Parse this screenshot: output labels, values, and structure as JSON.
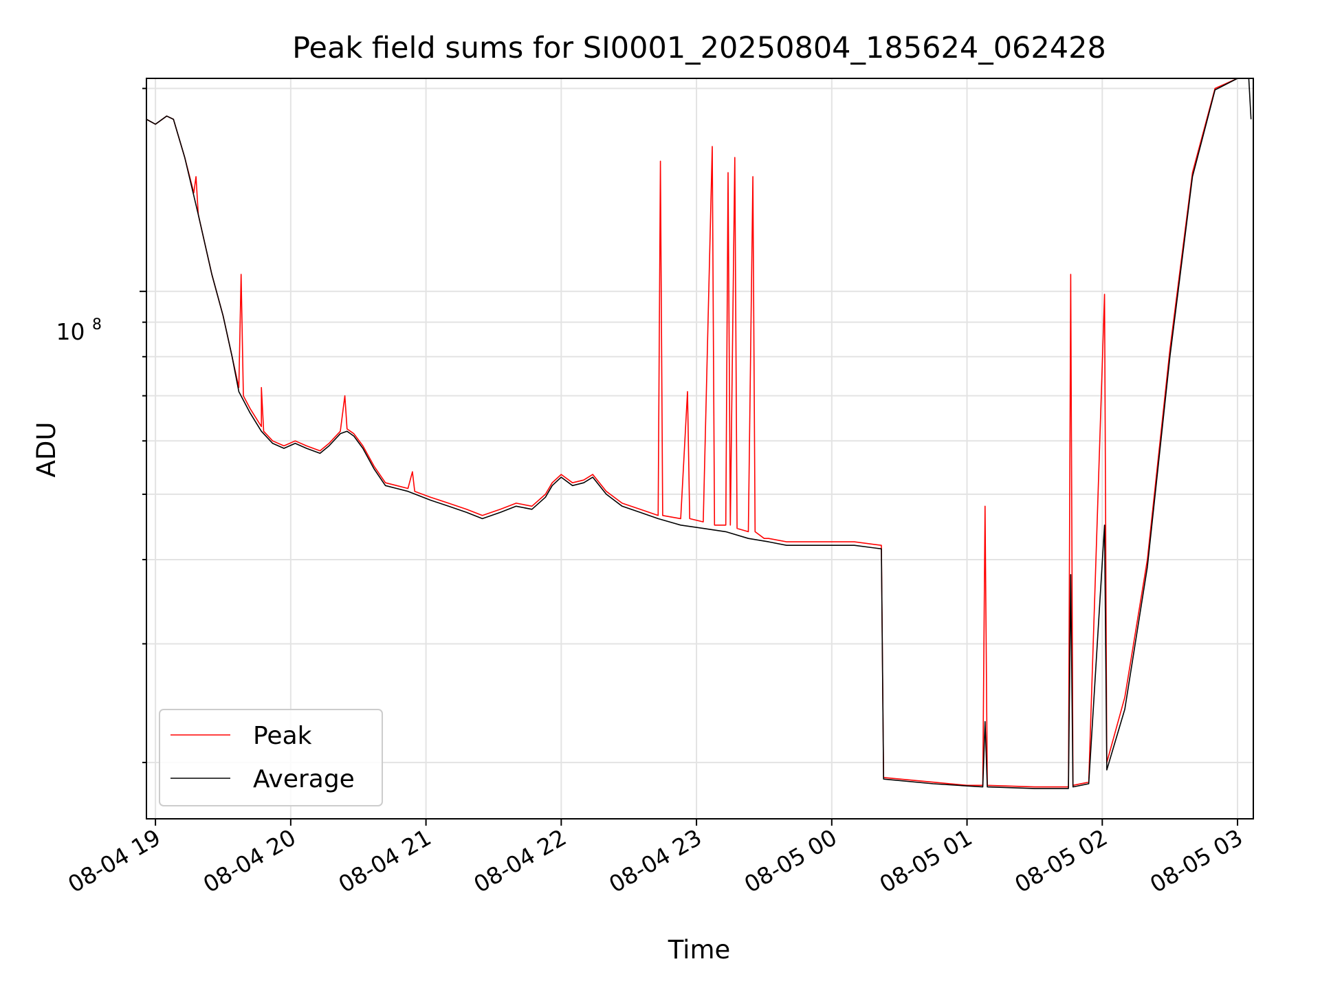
{
  "chart_data": {
    "type": "line",
    "title": "Peak field sums for SI0001_20250804_185624_062428",
    "xlabel": "Time",
    "ylabel": "ADU",
    "y_scale": "log",
    "y_tick_label": "10",
    "y_tick_exponent": "8",
    "ylim": [
      16500000,
      207000000
    ],
    "xlim": [
      "2025-08-04 18:56",
      "2025-08-05 03:07"
    ],
    "x_ticks": [
      {
        "time": "2025-08-04 19:00",
        "label": "08-04 19"
      },
      {
        "time": "2025-08-04 20:00",
        "label": "08-04 20"
      },
      {
        "time": "2025-08-04 21:00",
        "label": "08-04 21"
      },
      {
        "time": "2025-08-04 22:00",
        "label": "08-04 22"
      },
      {
        "time": "2025-08-04 23:00",
        "label": "08-04 23"
      },
      {
        "time": "2025-08-05 00:00",
        "label": "08-05 00"
      },
      {
        "time": "2025-08-05 01:00",
        "label": "08-05 01"
      },
      {
        "time": "2025-08-05 02:00",
        "label": "08-05 02"
      },
      {
        "time": "2025-08-05 03:00",
        "label": "08-05 03"
      }
    ],
    "grid": true,
    "legend_position": "lower-left",
    "series": [
      {
        "name": "Peak",
        "color": "#ff0000",
        "points": [
          [
            "2025-08-04 18:56",
            180000000
          ],
          [
            "2025-08-04 19:00",
            177000000
          ],
          [
            "2025-08-04 19:05",
            182000000
          ],
          [
            "2025-08-04 19:08",
            180000000
          ],
          [
            "2025-08-04 19:13",
            158000000
          ],
          [
            "2025-08-04 19:17",
            140000000
          ],
          [
            "2025-08-04 19:18",
            148000000
          ],
          [
            "2025-08-04 19:19",
            130000000
          ],
          [
            "2025-08-04 19:25",
            106000000
          ],
          [
            "2025-08-04 19:30",
            92000000
          ],
          [
            "2025-08-04 19:34",
            80000000
          ],
          [
            "2025-08-04 19:37",
            72000000
          ],
          [
            "2025-08-04 19:38",
            106000000
          ],
          [
            "2025-08-04 19:39",
            70000000
          ],
          [
            "2025-08-04 19:42",
            67000000
          ],
          [
            "2025-08-04 19:47",
            63000000
          ],
          [
            "2025-08-04 19:47",
            72000000
          ],
          [
            "2025-08-04 19:48",
            62000000
          ],
          [
            "2025-08-04 19:52",
            60000000
          ],
          [
            "2025-08-04 19:57",
            59000000
          ],
          [
            "2025-08-04 20:02",
            60000000
          ],
          [
            "2025-08-04 20:07",
            59000000
          ],
          [
            "2025-08-04 20:13",
            58000000
          ],
          [
            "2025-08-04 20:17",
            59500000
          ],
          [
            "2025-08-04 20:22",
            62000000
          ],
          [
            "2025-08-04 20:24",
            70000000
          ],
          [
            "2025-08-04 20:25",
            62500000
          ],
          [
            "2025-08-04 20:28",
            61500000
          ],
          [
            "2025-08-04 20:32",
            59000000
          ],
          [
            "2025-08-04 20:37",
            55000000
          ],
          [
            "2025-08-04 20:42",
            52000000
          ],
          [
            "2025-08-04 20:47",
            51500000
          ],
          [
            "2025-08-04 20:52",
            51000000
          ],
          [
            "2025-08-04 20:54",
            54000000
          ],
          [
            "2025-08-04 20:55",
            50500000
          ],
          [
            "2025-08-04 21:02",
            49500000
          ],
          [
            "2025-08-04 21:10",
            48500000
          ],
          [
            "2025-08-04 21:18",
            47500000
          ],
          [
            "2025-08-04 21:25",
            46500000
          ],
          [
            "2025-08-04 21:33",
            47500000
          ],
          [
            "2025-08-04 21:40",
            48500000
          ],
          [
            "2025-08-04 21:47",
            48000000
          ],
          [
            "2025-08-04 21:53",
            50000000
          ],
          [
            "2025-08-04 21:56",
            52000000
          ],
          [
            "2025-08-04 22:00",
            53500000
          ],
          [
            "2025-08-04 22:05",
            52000000
          ],
          [
            "2025-08-04 22:10",
            52500000
          ],
          [
            "2025-08-04 22:14",
            53500000
          ],
          [
            "2025-08-04 22:20",
            50500000
          ],
          [
            "2025-08-04 22:27",
            48500000
          ],
          [
            "2025-08-04 22:35",
            47500000
          ],
          [
            "2025-08-04 22:43",
            46500000
          ],
          [
            "2025-08-04 22:44",
            156000000
          ],
          [
            "2025-08-04 22:45",
            46500000
          ],
          [
            "2025-08-04 22:53",
            46000000
          ],
          [
            "2025-08-04 22:56",
            71000000
          ],
          [
            "2025-08-04 22:57",
            46000000
          ],
          [
            "2025-08-04 23:03",
            45500000
          ],
          [
            "2025-08-04 23:07",
            164000000
          ],
          [
            "2025-08-04 23:08",
            45000000
          ],
          [
            "2025-08-04 23:13",
            45000000
          ],
          [
            "2025-08-04 23:14",
            150000000
          ],
          [
            "2025-08-04 23:15",
            45000000
          ],
          [
            "2025-08-04 23:17",
            158000000
          ],
          [
            "2025-08-04 23:18",
            44500000
          ],
          [
            "2025-08-04 23:23",
            44000000
          ],
          [
            "2025-08-04 23:25",
            148000000
          ],
          [
            "2025-08-04 23:26",
            44000000
          ],
          [
            "2025-08-04 23:30",
            43000000
          ],
          [
            "2025-08-04 23:32",
            43000000
          ],
          [
            "2025-08-04 23:40",
            42500000
          ],
          [
            "2025-08-04 23:50",
            42500000
          ],
          [
            "2025-08-05 00:00",
            42500000
          ],
          [
            "2025-08-05 00:10",
            42500000
          ],
          [
            "2025-08-05 00:22",
            42000000
          ],
          [
            "2025-08-05 00:23",
            19000000
          ],
          [
            "2025-08-05 00:45",
            18700000
          ],
          [
            "2025-08-05 01:00",
            18500000
          ],
          [
            "2025-08-05 01:07",
            18500000
          ],
          [
            "2025-08-05 01:08",
            48000000
          ],
          [
            "2025-08-05 01:09",
            18500000
          ],
          [
            "2025-08-05 01:30",
            18400000
          ],
          [
            "2025-08-05 01:45",
            18400000
          ],
          [
            "2025-08-05 01:46",
            106000000
          ],
          [
            "2025-08-05 01:47",
            18500000
          ],
          [
            "2025-08-05 01:54",
            18700000
          ],
          [
            "2025-08-05 02:01",
            99000000
          ],
          [
            "2025-08-05 02:02",
            20000000
          ],
          [
            "2025-08-05 02:10",
            25000000
          ],
          [
            "2025-08-05 02:20",
            40000000
          ],
          [
            "2025-08-05 02:30",
            82000000
          ],
          [
            "2025-08-05 02:40",
            150000000
          ],
          [
            "2025-08-05 02:50",
            200000000
          ],
          [
            "2025-08-05 03:00",
            207000000
          ],
          [
            "2025-08-05 03:05",
            207000000
          ]
        ]
      },
      {
        "name": "Average",
        "color": "#000000",
        "points": [
          [
            "2025-08-04 18:56",
            180000000
          ],
          [
            "2025-08-04 19:00",
            177000000
          ],
          [
            "2025-08-04 19:05",
            182000000
          ],
          [
            "2025-08-04 19:08",
            180000000
          ],
          [
            "2025-08-04 19:13",
            158000000
          ],
          [
            "2025-08-04 19:19",
            130000000
          ],
          [
            "2025-08-04 19:25",
            106000000
          ],
          [
            "2025-08-04 19:30",
            92000000
          ],
          [
            "2025-08-04 19:34",
            80000000
          ],
          [
            "2025-08-04 19:37",
            71000000
          ],
          [
            "2025-08-04 19:42",
            66000000
          ],
          [
            "2025-08-04 19:47",
            62000000
          ],
          [
            "2025-08-04 19:52",
            59500000
          ],
          [
            "2025-08-04 19:57",
            58500000
          ],
          [
            "2025-08-04 20:02",
            59500000
          ],
          [
            "2025-08-04 20:07",
            58500000
          ],
          [
            "2025-08-04 20:13",
            57500000
          ],
          [
            "2025-08-04 20:17",
            59000000
          ],
          [
            "2025-08-04 20:22",
            61500000
          ],
          [
            "2025-08-04 20:25",
            62000000
          ],
          [
            "2025-08-04 20:28",
            61000000
          ],
          [
            "2025-08-04 20:32",
            58500000
          ],
          [
            "2025-08-04 20:37",
            54500000
          ],
          [
            "2025-08-04 20:42",
            51500000
          ],
          [
            "2025-08-04 20:47",
            51000000
          ],
          [
            "2025-08-04 20:52",
            50500000
          ],
          [
            "2025-08-04 21:02",
            49000000
          ],
          [
            "2025-08-04 21:10",
            48000000
          ],
          [
            "2025-08-04 21:18",
            47000000
          ],
          [
            "2025-08-04 21:25",
            46000000
          ],
          [
            "2025-08-04 21:33",
            47000000
          ],
          [
            "2025-08-04 21:40",
            48000000
          ],
          [
            "2025-08-04 21:47",
            47500000
          ],
          [
            "2025-08-04 21:53",
            49500000
          ],
          [
            "2025-08-04 21:56",
            51500000
          ],
          [
            "2025-08-04 22:00",
            53000000
          ],
          [
            "2025-08-04 22:05",
            51500000
          ],
          [
            "2025-08-04 22:10",
            52000000
          ],
          [
            "2025-08-04 22:14",
            53000000
          ],
          [
            "2025-08-04 22:20",
            50000000
          ],
          [
            "2025-08-04 22:27",
            48000000
          ],
          [
            "2025-08-04 22:35",
            47000000
          ],
          [
            "2025-08-04 22:43",
            46000000
          ],
          [
            "2025-08-04 22:53",
            45000000
          ],
          [
            "2025-08-04 23:03",
            44500000
          ],
          [
            "2025-08-04 23:13",
            44000000
          ],
          [
            "2025-08-04 23:23",
            43000000
          ],
          [
            "2025-08-04 23:32",
            42500000
          ],
          [
            "2025-08-04 23:40",
            42000000
          ],
          [
            "2025-08-04 23:50",
            42000000
          ],
          [
            "2025-08-05 00:00",
            42000000
          ],
          [
            "2025-08-05 00:10",
            42000000
          ],
          [
            "2025-08-05 00:22",
            41500000
          ],
          [
            "2025-08-05 00:23",
            18900000
          ],
          [
            "2025-08-05 00:45",
            18600000
          ],
          [
            "2025-08-05 01:07",
            18400000
          ],
          [
            "2025-08-05 01:08",
            23000000
          ],
          [
            "2025-08-05 01:09",
            18400000
          ],
          [
            "2025-08-05 01:30",
            18300000
          ],
          [
            "2025-08-05 01:45",
            18300000
          ],
          [
            "2025-08-05 01:46",
            38000000
          ],
          [
            "2025-08-05 01:47",
            18400000
          ],
          [
            "2025-08-05 01:54",
            18600000
          ],
          [
            "2025-08-05 02:01",
            45000000
          ],
          [
            "2025-08-05 02:02",
            19500000
          ],
          [
            "2025-08-05 02:10",
            24000000
          ],
          [
            "2025-08-05 02:20",
            39000000
          ],
          [
            "2025-08-05 02:30",
            80000000
          ],
          [
            "2025-08-05 02:40",
            148000000
          ],
          [
            "2025-08-05 02:50",
            199000000
          ],
          [
            "2025-08-05 03:00",
            207000000
          ],
          [
            "2025-08-05 03:05",
            207000000
          ],
          [
            "2025-08-05 03:06",
            180000000
          ]
        ]
      }
    ]
  }
}
